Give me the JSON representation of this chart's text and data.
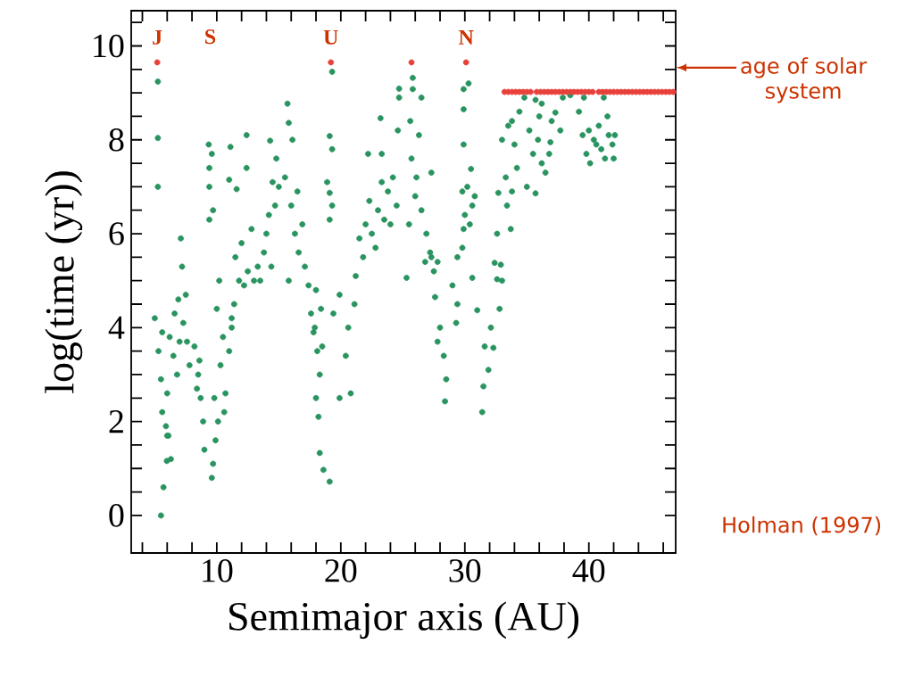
{
  "chart_data": {
    "type": "scatter",
    "xlabel": "Semimajor axis (AU)",
    "ylabel": "log(time (yr))",
    "xlim": [
      3.1,
      47
    ],
    "ylim": [
      -0.8,
      10.75
    ],
    "xticks": [
      {
        "value": 4,
        "label": null
      },
      {
        "value": 6,
        "label": null
      },
      {
        "value": 8,
        "label": null
      },
      10,
      {
        "value": 12,
        "label": null
      },
      {
        "value": 14,
        "label": null
      },
      {
        "value": 16,
        "label": null
      },
      {
        "value": 18,
        "label": null
      },
      20,
      {
        "value": 22,
        "label": null
      },
      {
        "value": 24,
        "label": null
      },
      {
        "value": 26,
        "label": null
      },
      {
        "value": 28,
        "label": null
      },
      30,
      {
        "value": 32,
        "label": null
      },
      {
        "value": 34,
        "label": null
      },
      {
        "value": 36,
        "label": null
      },
      {
        "value": 38,
        "label": null
      },
      40,
      {
        "value": 42,
        "label": null
      },
      {
        "value": 44,
        "label": null
      },
      {
        "value": 46,
        "label": null
      }
    ],
    "yticks": [
      0,
      {
        "value": 0.5,
        "label": null
      },
      {
        "value": 1,
        "label": null
      },
      {
        "value": 1.5,
        "label": null
      },
      2,
      {
        "value": 2.5,
        "label": null
      },
      {
        "value": 3,
        "label": null
      },
      {
        "value": 3.5,
        "label": null
      },
      4,
      {
        "value": 4.5,
        "label": null
      },
      {
        "value": 5,
        "label": null
      },
      {
        "value": 5.5,
        "label": null
      },
      6,
      {
        "value": 6.5,
        "label": null
      },
      {
        "value": 7,
        "label": null
      },
      {
        "value": 7.5,
        "label": null
      },
      8,
      {
        "value": 8.5,
        "label": null
      },
      {
        "value": 9,
        "label": null
      },
      {
        "value": 9.5,
        "label": null
      },
      10,
      {
        "value": 10.5,
        "label": null
      }
    ],
    "grid": false,
    "series": [
      {
        "color": "#2a9460",
        "x": [
          5.25,
          5.25,
          5.25,
          5.0,
          5.5,
          5.7,
          5.97,
          6.0,
          5.3,
          5.5,
          5.6,
          5.9,
          6.1,
          6.3,
          6.0,
          6.2,
          5.6,
          6.6,
          6.9,
          7.1,
          7.2,
          7.5,
          7.3,
          7.0,
          6.5,
          6.8,
          7.6,
          7.8,
          8.2,
          8.5,
          8.7,
          8.9,
          9.0,
          8.6,
          8.4,
          9.6,
          9.7,
          9.9,
          9.35,
          9.6,
          9.4,
          9.4,
          9.7,
          9.4,
          10.2,
          10.0,
          10.5,
          10.3,
          10.7,
          10.6,
          11.0,
          11.2,
          9.8,
          10.1,
          11.1,
          12.4,
          11.0,
          12.4,
          11.6,
          11.5,
          12.0,
          12.5,
          13.0,
          11.8,
          12.8,
          11.4,
          12.2,
          11.2,
          14.3,
          13.5,
          13.8,
          14.2,
          14.5,
          14.8,
          14.0,
          14.7,
          13.3,
          15.0,
          14.4,
          15.7,
          15.8,
          16.1,
          15.5,
          16.0,
          16.3,
          16.6,
          15.8,
          16.9,
          17.1,
          17.4,
          17.6,
          17.8,
          16.5,
          17.9,
          18.1,
          18.3,
          18.0,
          18.2,
          18.5,
          18.4,
          18.0,
          19.3,
          19.1,
          19.3,
          18.9,
          19.1,
          19.3,
          19.1,
          18.3,
          18.6,
          19.1,
          19.9,
          20.8,
          20.4,
          20.6,
          21.1,
          19.9,
          21.2,
          19.4,
          22.2,
          23.2,
          23.3,
          24.7,
          24.7,
          24.6,
          21.5,
          22.0,
          22.5,
          23.0,
          23.5,
          24.0,
          24.5,
          22.8,
          23.8,
          21.8,
          22.3,
          24.2,
          23.3,
          25.8,
          25.8,
          25.6,
          26.5,
          26.3,
          25.7,
          26.1,
          26.0,
          26.5,
          25.5,
          26.9,
          27.2,
          27.5,
          26.8,
          27.3,
          27.3,
          27.8,
          27.6,
          28.0,
          28.3,
          28.5,
          28.4,
          27.8,
          29.0,
          29.4,
          29.3,
          25.3,
          29.9,
          30.3,
          29.9,
          29.9,
          30.5,
          29.8,
          30.2,
          30.6,
          30.0,
          30.4,
          29.9,
          30.8,
          29.8,
          29.4,
          30.6,
          32.6,
          31.0,
          32.1,
          31.6,
          32.3,
          31.9,
          31.5,
          31.4,
          32.8,
          33.0,
          32.4,
          32.9,
          32.6,
          32.7,
          33.3,
          33.4,
          33.7,
          33.8,
          33.0,
          33.5,
          34.0,
          34.4,
          34.8,
          35.2,
          35.5,
          35.9,
          36.2,
          36.5,
          34.2,
          35.0,
          36.0,
          35.7,
          33.8,
          36.8,
          35.7,
          36.2,
          37.3,
          37.7,
          37.0,
          37.9,
          38.5,
          36.9,
          39.2,
          39.5,
          39.8,
          40.1,
          40.4,
          40.8,
          41.0,
          41.3,
          41.6,
          41.9,
          42.1,
          41.2,
          40.6,
          39.6,
          41.5,
          40.0,
          42.0
        ],
        "values": [
          9.24,
          8.04,
          7.0,
          4.2,
          0.0,
          0.6,
          1.16,
          1.7,
          3.5,
          2.9,
          2.2,
          1.9,
          1.7,
          1.2,
          2.6,
          3.8,
          3.9,
          4.3,
          4.6,
          5.9,
          5.3,
          4.7,
          4.1,
          3.7,
          3.4,
          3.0,
          3.7,
          3.2,
          3.6,
          3.0,
          2.5,
          2.0,
          1.4,
          3.3,
          2.7,
          0.8,
          1.1,
          1.6,
          7.9,
          7.7,
          7.4,
          7.0,
          6.5,
          6.3,
          5.0,
          4.4,
          3.8,
          3.2,
          2.6,
          2.2,
          3.5,
          4.0,
          2.5,
          2.0,
          7.85,
          8.1,
          7.15,
          7.4,
          6.95,
          5.5,
          5.8,
          5.2,
          5.0,
          5.0,
          6.1,
          4.5,
          4.9,
          4.2,
          7.98,
          5.0,
          5.6,
          6.4,
          7.1,
          7.6,
          6.0,
          6.6,
          5.3,
          7.0,
          5.3,
          8.77,
          8.36,
          8.0,
          7.2,
          6.6,
          6.0,
          5.6,
          5.0,
          6.2,
          5.3,
          4.9,
          4.3,
          3.9,
          6.9,
          4.0,
          3.5,
          3.0,
          2.5,
          2.1,
          3.6,
          4.4,
          4.8,
          9.45,
          8.08,
          7.8,
          7.1,
          6.87,
          6.6,
          6.3,
          1.33,
          0.97,
          0.72,
          2.5,
          2.6,
          3.4,
          4.0,
          4.5,
          4.7,
          5.1,
          4.3,
          7.7,
          8.46,
          7.7,
          9.09,
          8.9,
          8.2,
          5.9,
          6.2,
          6.0,
          6.5,
          6.3,
          6.2,
          6.6,
          5.7,
          6.9,
          5.5,
          6.7,
          7.2,
          7.1,
          9.32,
          9.08,
          8.4,
          8.9,
          8.1,
          7.6,
          7.2,
          6.8,
          6.5,
          6.2,
          6.0,
          5.6,
          5.2,
          5.4,
          7.3,
          5.5,
          5.4,
          4.65,
          4.0,
          3.4,
          2.9,
          2.43,
          3.7,
          4.9,
          4.5,
          4.1,
          5.06,
          9.08,
          9.2,
          8.65,
          7.9,
          7.38,
          6.9,
          7.0,
          6.6,
          6.4,
          6.2,
          6.1,
          6.8,
          5.7,
          5.5,
          5.06,
          5.03,
          4.37,
          4.0,
          3.6,
          3.57,
          3.1,
          2.75,
          2.2,
          4.4,
          5.0,
          5.38,
          5.34,
          6.0,
          6.87,
          7.2,
          6.6,
          6.1,
          6.9,
          8.0,
          8.3,
          7.9,
          8.6,
          8.9,
          8.2,
          7.7,
          8.0,
          7.5,
          7.3,
          7.4,
          7.0,
          8.5,
          8.85,
          8.4,
          7.7,
          6.86,
          8.77,
          8.58,
          8.2,
          8.4,
          8.9,
          8.95,
          7.95,
          8.6,
          8.1,
          7.7,
          7.5,
          8.0,
          8.3,
          7.8,
          7.6,
          8.1,
          7.9,
          8.1,
          8.9,
          7.9,
          8.9,
          8.5,
          8.2,
          7.6
        ]
      },
      {
        "color": "#e8403a",
        "x": [
          5.2,
          19.2,
          25.7,
          30.1,
          33.2,
          33.5,
          33.8,
          34.1,
          34.4,
          34.7,
          35.0,
          35.3,
          35.8,
          36.1,
          36.4,
          36.7,
          37.0,
          37.3,
          37.6,
          37.9,
          38.2,
          38.5,
          38.8,
          39.1,
          39.4,
          39.7,
          40.0,
          40.3,
          40.8,
          41.1,
          41.4,
          41.7,
          42.0,
          42.3,
          42.6,
          42.9,
          43.2,
          43.5,
          43.8,
          44.1,
          44.4,
          44.7,
          45.0,
          45.3,
          45.6,
          45.9,
          46.2,
          46.5,
          46.8
        ],
        "values": [
          9.65,
          9.65,
          9.65,
          9.65,
          9.02,
          9.02,
          9.02,
          9.02,
          9.02,
          9.02,
          9.02,
          9.02,
          9.02,
          9.02,
          9.02,
          9.02,
          9.02,
          9.02,
          9.02,
          9.02,
          9.02,
          9.02,
          9.02,
          9.02,
          9.02,
          9.02,
          9.02,
          9.02,
          9.02,
          9.02,
          9.02,
          9.02,
          9.02,
          9.02,
          9.02,
          9.02,
          9.02,
          9.02,
          9.02,
          9.02,
          9.02,
          9.02,
          9.02,
          9.02,
          9.02,
          9.02,
          9.02,
          9.02,
          9.02
        ]
      }
    ],
    "annotations": [
      {
        "text": "J",
        "x": 5.2,
        "y": 9.65
      },
      "S",
      {
        "text": "U",
        "x": 19.2,
        "y": 9.65
      },
      {
        "text": "N",
        "x": 30.1,
        "y": 9.65
      },
      "age of solar system",
      "Holman (1997)"
    ]
  }
}
